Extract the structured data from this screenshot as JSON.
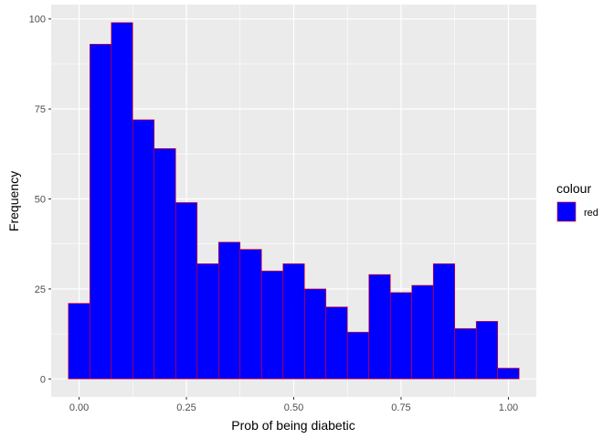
{
  "chart_data": {
    "type": "bar",
    "subtype": "histogram",
    "xlabel": "Prob of being diabetic",
    "ylabel": "Frequency",
    "xlim": [
      -0.065,
      1.065
    ],
    "ylim": [
      -5,
      104
    ],
    "x_ticks": [
      0,
      0.25,
      0.5,
      0.75,
      1.0
    ],
    "x_tick_labels": [
      "0.00",
      "0.25",
      "0.50",
      "0.75",
      "1.00"
    ],
    "y_ticks": [
      0,
      25,
      50,
      75,
      100
    ],
    "y_tick_labels": [
      "0",
      "25",
      "50",
      "75",
      "100"
    ],
    "bin_width": 0.05,
    "bins": [
      {
        "x0": -0.025,
        "x1": 0.025,
        "count": 21
      },
      {
        "x0": 0.025,
        "x1": 0.075,
        "count": 93
      },
      {
        "x0": 0.075,
        "x1": 0.125,
        "count": 99
      },
      {
        "x0": 0.125,
        "x1": 0.175,
        "count": 72
      },
      {
        "x0": 0.175,
        "x1": 0.225,
        "count": 64
      },
      {
        "x0": 0.225,
        "x1": 0.275,
        "count": 49
      },
      {
        "x0": 0.275,
        "x1": 0.325,
        "count": 32
      },
      {
        "x0": 0.325,
        "x1": 0.375,
        "count": 38
      },
      {
        "x0": 0.375,
        "x1": 0.425,
        "count": 36
      },
      {
        "x0": 0.425,
        "x1": 0.475,
        "count": 30
      },
      {
        "x0": 0.475,
        "x1": 0.525,
        "count": 32
      },
      {
        "x0": 0.525,
        "x1": 0.575,
        "count": 25
      },
      {
        "x0": 0.575,
        "x1": 0.625,
        "count": 20
      },
      {
        "x0": 0.625,
        "x1": 0.675,
        "count": 13
      },
      {
        "x0": 0.675,
        "x1": 0.725,
        "count": 29
      },
      {
        "x0": 0.725,
        "x1": 0.775,
        "count": 24
      },
      {
        "x0": 0.775,
        "x1": 0.825,
        "count": 26
      },
      {
        "x0": 0.825,
        "x1": 0.875,
        "count": 32
      },
      {
        "x0": 0.875,
        "x1": 0.925,
        "count": 14
      },
      {
        "x0": 0.925,
        "x1": 0.975,
        "count": 16
      },
      {
        "x0": 0.975,
        "x1": 1.025,
        "count": 3
      }
    ],
    "grid": true,
    "legend": {
      "title": "colour",
      "entries": [
        {
          "label": "red",
          "fill": "#0000ff",
          "stroke": "#ff0000"
        }
      ],
      "placement": "right"
    },
    "colors": {
      "bar_fill": "#0000ff",
      "bar_stroke": "#ff0000",
      "panel_background": "#ebebeb",
      "grid_major": "#ffffff"
    }
  }
}
